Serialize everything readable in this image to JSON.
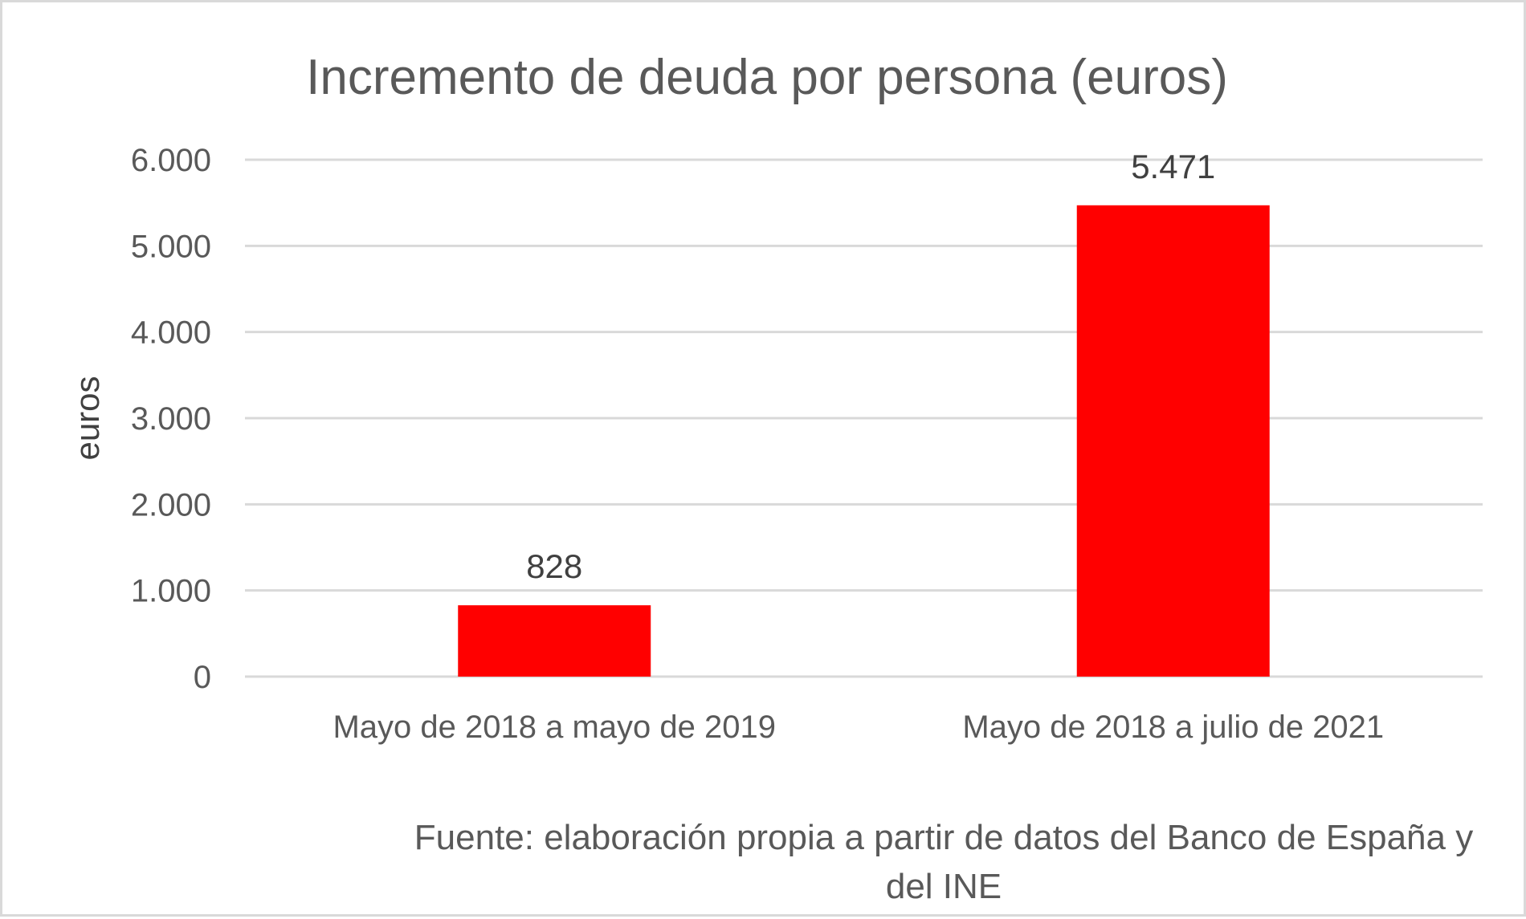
{
  "chart_data": {
    "type": "bar",
    "title": "Incremento de deuda por persona (euros)",
    "ylabel": "euros",
    "xlabel": "",
    "categories": [
      "Mayo de 2018 a mayo de 2019",
      "Mayo de 2018 a julio de 2021"
    ],
    "values": [
      828,
      5471
    ],
    "value_labels": [
      "828",
      "5.471"
    ],
    "ylim": [
      0,
      6000
    ],
    "yticks": [
      0,
      1000,
      2000,
      3000,
      4000,
      5000,
      6000
    ],
    "ytick_labels": [
      "0",
      "1.000",
      "2.000",
      "3.000",
      "4.000",
      "5.000",
      "6.000"
    ],
    "bar_color": "#ff0000",
    "grid": true,
    "legend": "none",
    "source_lines": [
      "Fuente: elaboración propia a partir de datos del Banco de España y",
      "del INE"
    ]
  }
}
